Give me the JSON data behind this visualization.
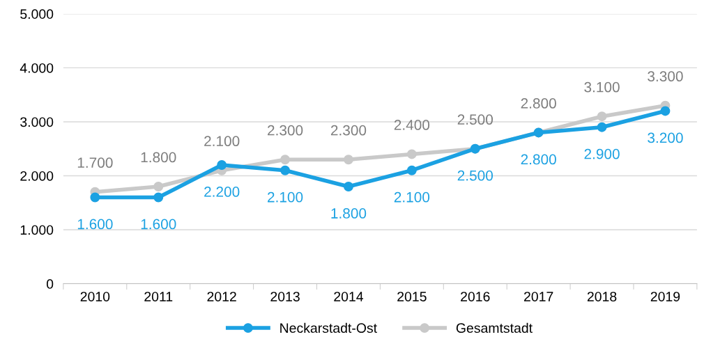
{
  "chart_data": {
    "type": "line",
    "categories": [
      "2010",
      "2011",
      "2012",
      "2013",
      "2014",
      "2015",
      "2016",
      "2017",
      "2018",
      "2019"
    ],
    "series": [
      {
        "name": "Neckarstadt-Ost",
        "color": "#1ba1e2",
        "values": [
          1600,
          1600,
          2200,
          2100,
          1800,
          2100,
          2500,
          2800,
          2900,
          3200
        ],
        "value_labels": [
          "1.600",
          "1.600",
          "2.200",
          "2.100",
          "1.800",
          "2.100",
          "2.500",
          "2.800",
          "2.900",
          "3.200"
        ]
      },
      {
        "name": "Gesamtstadt",
        "color": "#c9c9c9",
        "values": [
          1700,
          1800,
          2100,
          2300,
          2300,
          2400,
          2500,
          2800,
          3100,
          3300
        ],
        "value_labels": [
          "1.700",
          "1.800",
          "2.100",
          "2.300",
          "2.300",
          "2.400",
          "2.500",
          "2.800",
          "3.100",
          "3.300"
        ]
      }
    ],
    "ylim": [
      0,
      5000
    ],
    "yticks": [
      0,
      {
        "value": 1000,
        "label": "1.000"
      },
      {
        "value": 2000,
        "label": "2.000"
      },
      {
        "value": 3000,
        "label": "3.000"
      },
      {
        "value": 4000,
        "label": "4.000"
      },
      {
        "value": 5000,
        "label": "5.000"
      }
    ],
    "grid": "y",
    "legend": "bottom",
    "marker": "circle",
    "line_style": "solid"
  }
}
